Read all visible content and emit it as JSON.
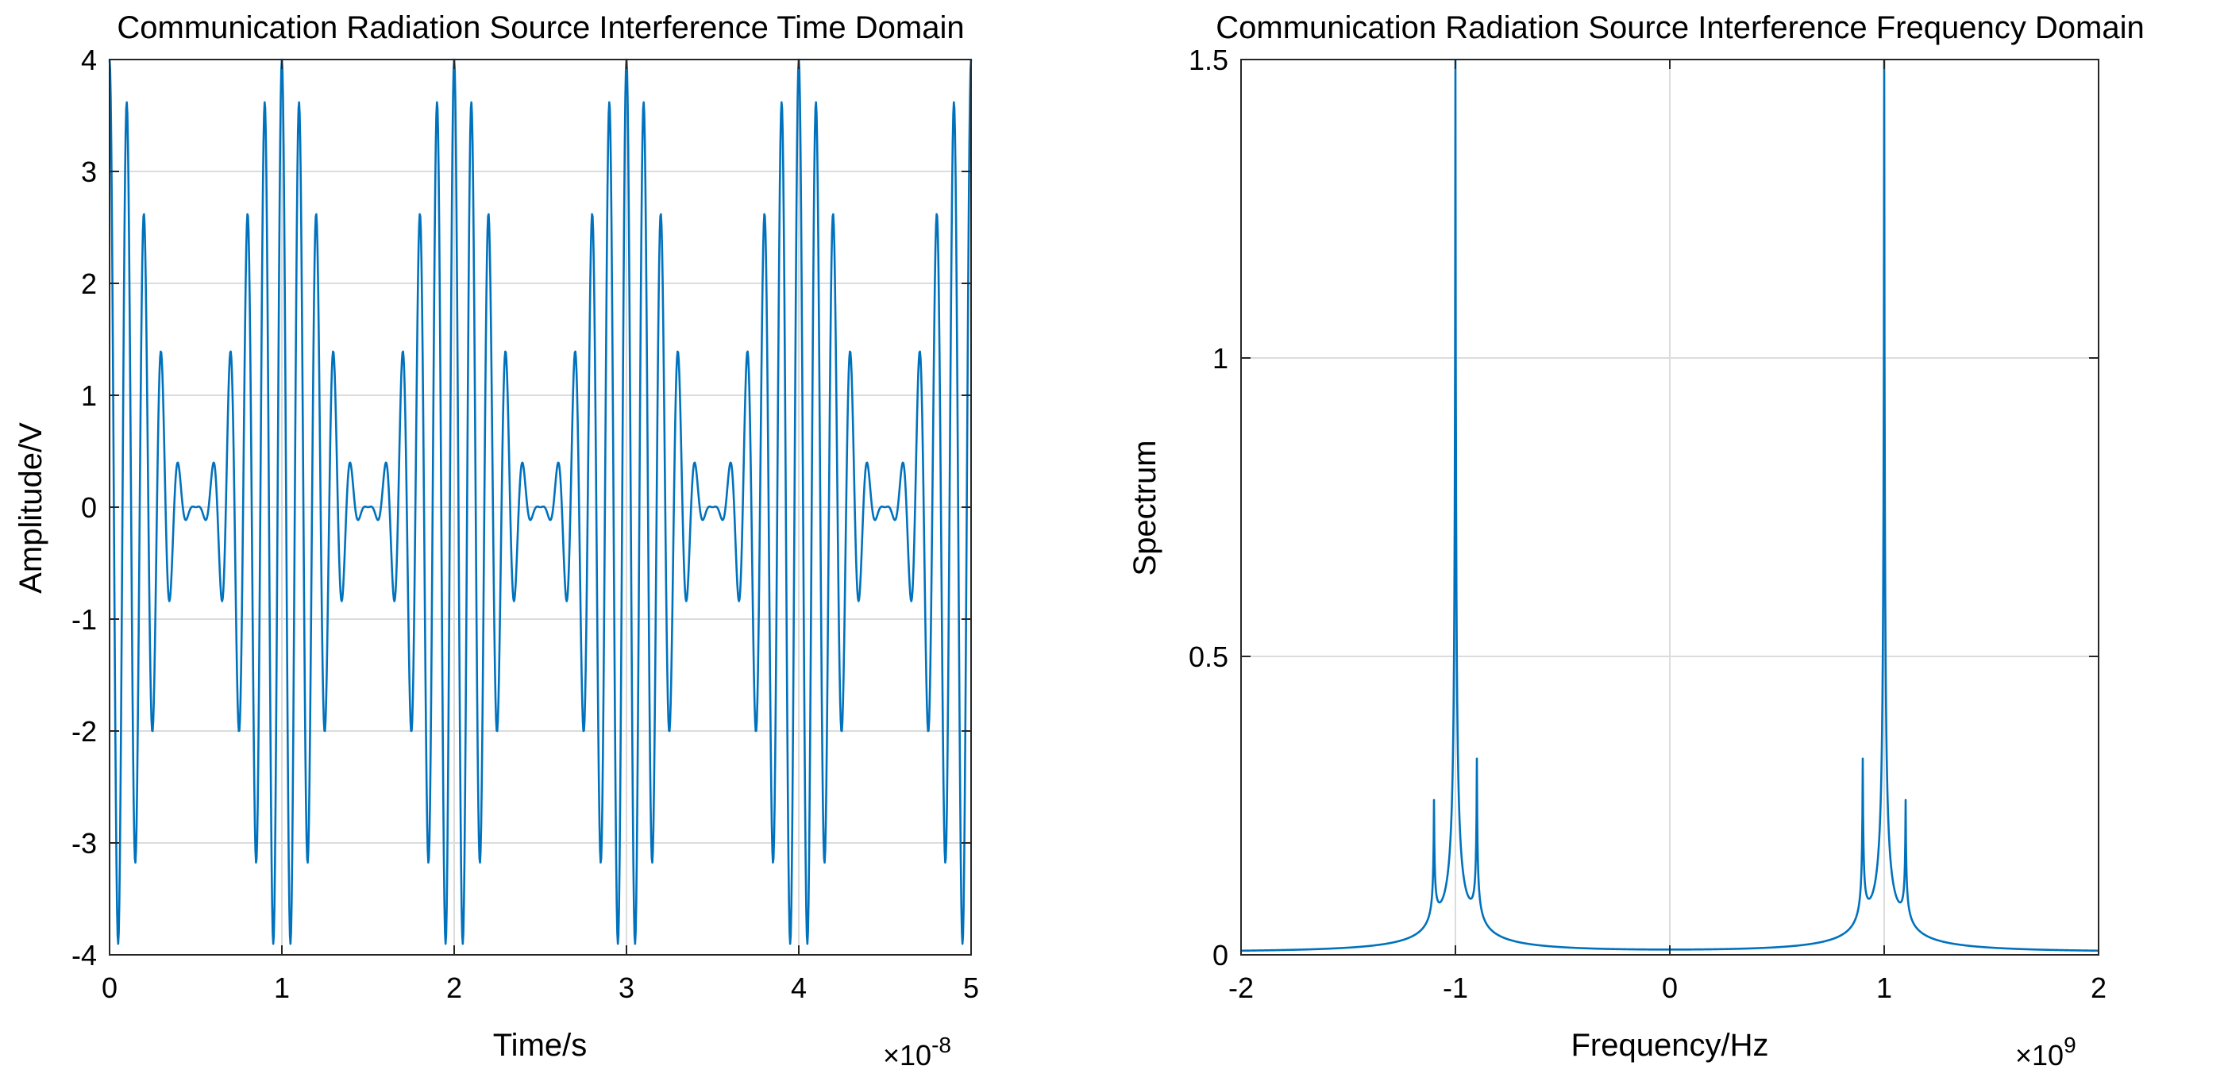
{
  "chart_data": [
    {
      "type": "line",
      "title": "Communication Radiation Source Interference Time Domain",
      "xlabel": "Time/s",
      "ylabel": "Amplitude/V",
      "x_multiplier": "×10",
      "x_exponent": "-8",
      "xlim": [
        0,
        5e-08
      ],
      "ylim": [
        -4,
        4
      ],
      "xticks": [
        0,
        1e-08,
        2e-08,
        3e-08,
        4e-08,
        5e-08
      ],
      "xtick_labels": [
        "0",
        "1",
        "2",
        "3",
        "4",
        "5"
      ],
      "yticks": [
        -4,
        -3,
        -2,
        -1,
        0,
        1,
        2,
        3,
        4
      ],
      "ytick_labels": [
        "-4",
        "-3",
        "-2",
        "-1",
        "0",
        "1",
        "2",
        "3",
        "4"
      ],
      "grid": true,
      "line_color": "#0072BD",
      "signal": {
        "components": [
          {
            "amplitude": 2,
            "frequency_hz": 1000000000.0
          },
          {
            "amplitude": 1,
            "frequency_hz": 900000000.0
          },
          {
            "amplitude": 1,
            "frequency_hz": 1100000000.0
          }
        ],
        "sample_count": 1500
      }
    },
    {
      "type": "line",
      "title": "Communication Radiation Source Interference Frequency Domain",
      "xlabel": "Frequency/Hz",
      "ylabel": "Spectrum",
      "x_multiplier": "×10",
      "x_exponent": "9",
      "xlim": [
        -2000000000.0,
        2000000000.0
      ],
      "ylim": [
        0,
        1.5
      ],
      "xticks": [
        -2000000000.0,
        -1000000000.0,
        0,
        1000000000.0,
        2000000000.0
      ],
      "xtick_labels": [
        "-2",
        "-1",
        "0",
        "1",
        "2"
      ],
      "yticks": [
        0,
        0.5,
        1,
        1.5
      ],
      "ytick_labels": [
        "0",
        "0.5",
        "1",
        "1.5"
      ],
      "grid": true,
      "line_color": "#0072BD",
      "peaks": [
        {
          "frequency_hz": -1100000000.0,
          "value": 0.21
        },
        {
          "frequency_hz": -1000000000.0,
          "value": 1.48
        },
        {
          "frequency_hz": -900000000.0,
          "value": 0.28
        },
        {
          "frequency_hz": 900000000.0,
          "value": 0.28
        },
        {
          "frequency_hz": 1000000000.0,
          "value": 1.48
        },
        {
          "frequency_hz": 1100000000.0,
          "value": 0.21
        }
      ],
      "baseline": 0.005
    }
  ]
}
